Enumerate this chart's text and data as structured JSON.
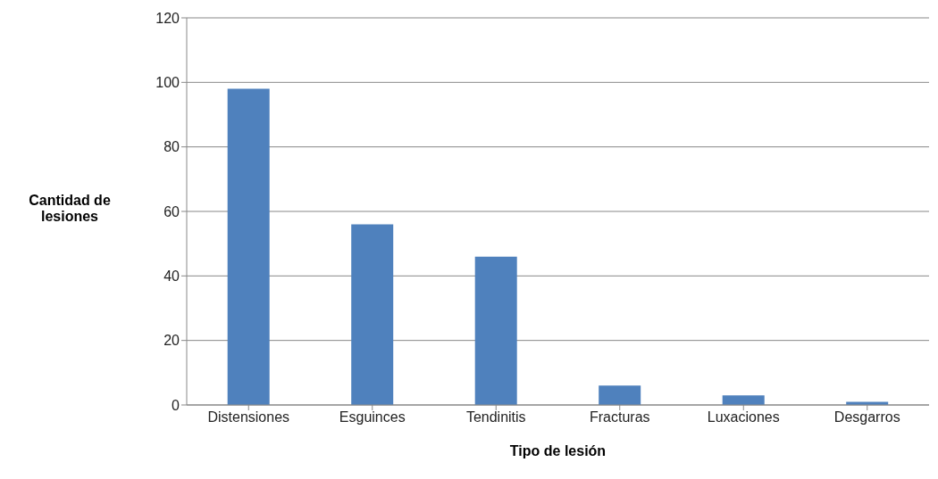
{
  "chart_data": {
    "type": "bar",
    "xlabel": "Tipo de lesión",
    "ylabel": "Cantidad de lesiones",
    "categories": [
      "Distensiones",
      "Esguinces",
      "Tendinitis",
      "Fracturas",
      "Luxaciones",
      "Desgarros"
    ],
    "values": [
      98,
      56,
      46,
      6,
      3,
      1
    ],
    "color": "#4f81bd",
    "ylim": [
      0,
      120
    ],
    "yticks": [
      0,
      20,
      40,
      60,
      80,
      100,
      120
    ],
    "grid": "y",
    "legend": false
  }
}
